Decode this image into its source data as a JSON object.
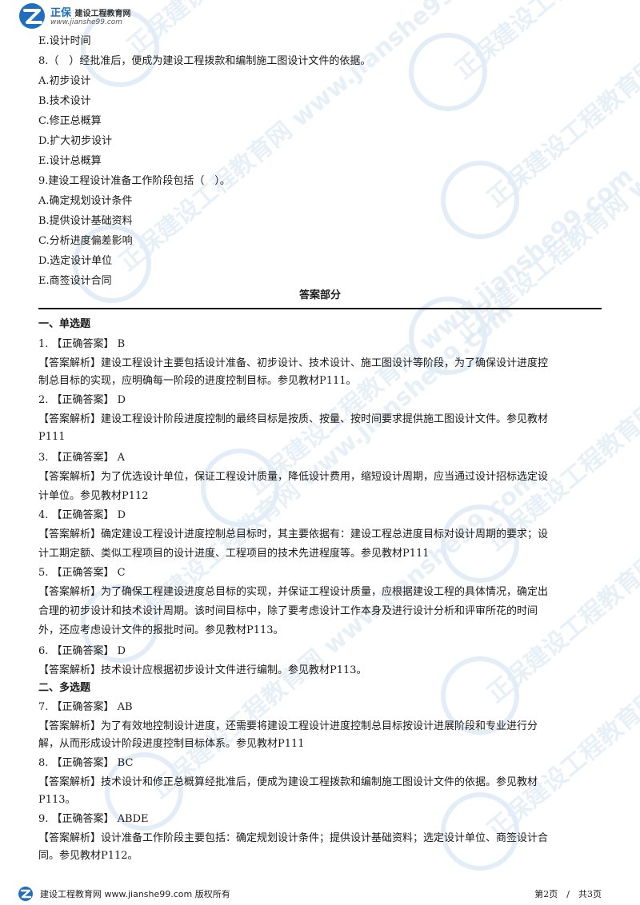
{
  "header": {
    "brand": "正保",
    "brand_sub": "建设工程教育网",
    "site": "www.jianshe99.com"
  },
  "watermark_text": "正保建设工程教育网 www.jianshe99.com",
  "lines": [
    "E.设计时间",
    "8.（　）经批准后，便成为建设工程拨款和编制施工图设计文件的依据。",
    "A.初步设计",
    "B.技术设计",
    "C.修正总概算",
    "D.扩大初步设计",
    "E.设计总概算",
    "9.建设工程设计准备工作阶段包括（　）。",
    "A.确定规划设计条件",
    "B.提供设计基础资料",
    "C.分析进度偏差影响",
    "D.选定设计单位",
    "E.商签设计合同"
  ],
  "answer_title": "答案部分",
  "answers": [
    "一、单选题",
    "1. 【正确答案】 B",
    "【答案解析】建设工程设计主要包括设计准备、初步设计、技术设计、施工图设计等阶段，为了确保设计进度控",
    "制总目标的实现，应明确每一阶段的进度控制目标。参见教材P111。",
    "2. 【正确答案】 D",
    "【答案解析】建设工程设计阶段进度控制的最终目标是按质、按量、按时间要求提供施工图设计文件。参见教材",
    "P111",
    "3. 【正确答案】 A",
    "【答案解析】为了优选设计单位，保证工程设计质量，降低设计费用，缩短设计周期，应当通过设计招标选定设",
    "计单位。参见教材P112",
    "4. 【正确答案】 D",
    "【答案解析】确定建设工程设计进度控制总目标时，其主要依据有：建设工程总进度目标对设计周期的要求；设",
    "计工期定额、类似工程项目的设计进度、工程项目的技术先进程度等。参见教材P111",
    "5. 【正确答案】 C",
    "【答案解析】为了确保工程建设进度总目标的实现，并保证工程设计质量，应根据建设工程的具体情况，确定出",
    "合理的初步设计和技术设计周期。该时间目标中，除了要考虑设计工作本身及进行设计分析和评审所花的时间",
    "外，还应考虑设计文件的报批时间。参见教材P113。",
    "6. 【正确答案】 D",
    "【答案解析】技术设计应根据初步设计文件进行编制。参见教材P113。",
    "二、多选题",
    "7. 【正确答案】 AB",
    "【答案解析】为了有效地控制设计进度，还需要将建设工程设计进度控制总目标按设计进展阶段和专业进行分",
    "解，从而形成设计阶段进度控制目标体系。参见教材P111",
    "8. 【正确答案】 BC",
    "【答案解析】技术设计和修正总概算经批准后，便成为建设工程拨款和编制施工图设计文件的依据。参见教材",
    "P113。",
    "9. 【正确答案】 ABDE",
    "【答案解析】设计准备工作阶段主要包括：确定规划设计条件；提供设计基础资料；选定设计单位、商签设计合",
    "同。参见教材P112。"
  ],
  "footer": {
    "text": "建设工程教育网 www.jianshe99.com 版权所有",
    "page": "第2页　/　共3页"
  },
  "colors": {
    "brand_blue": "#1e6fc0",
    "watermark": "#cfe0f1"
  }
}
